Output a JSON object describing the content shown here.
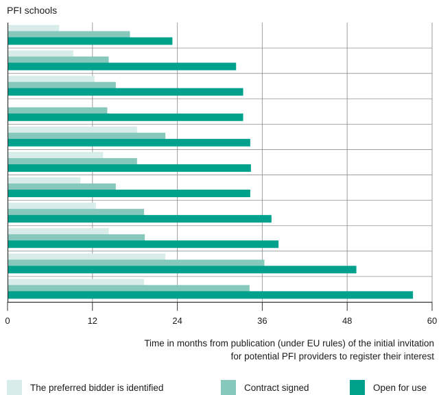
{
  "chart_data": {
    "type": "bar",
    "orientation": "horizontal",
    "title": "PFI schools",
    "xlabel_lines": [
      "Time in months from publication (under EU rules) of the initial invitation",
      "for potential PFI providers to register their interest"
    ],
    "ylabel": "",
    "xlim": [
      0,
      60
    ],
    "xticks": [
      "0",
      "12",
      "24",
      "36",
      "48",
      "60"
    ],
    "grid": true,
    "legend_position": "bottom",
    "series": [
      {
        "name": "The preferred bidder is identified",
        "color": "#d8ede9",
        "values": [
          7.3,
          9.3,
          12.3,
          null,
          18.3,
          13.5,
          10.3,
          12.5,
          14.3,
          22.3,
          19.3
        ]
      },
      {
        "name": "Contract signed",
        "color": "#86c8bc",
        "values": [
          17.3,
          14.3,
          15.3,
          14.1,
          22.3,
          18.3,
          15.3,
          19.3,
          19.4,
          36.3,
          34.2
        ]
      },
      {
        "name": "Open for use",
        "color": "#00a18c",
        "values": [
          23.3,
          32.3,
          33.3,
          33.3,
          34.3,
          34.4,
          34.3,
          37.3,
          38.3,
          49.3,
          57.3
        ]
      }
    ]
  }
}
